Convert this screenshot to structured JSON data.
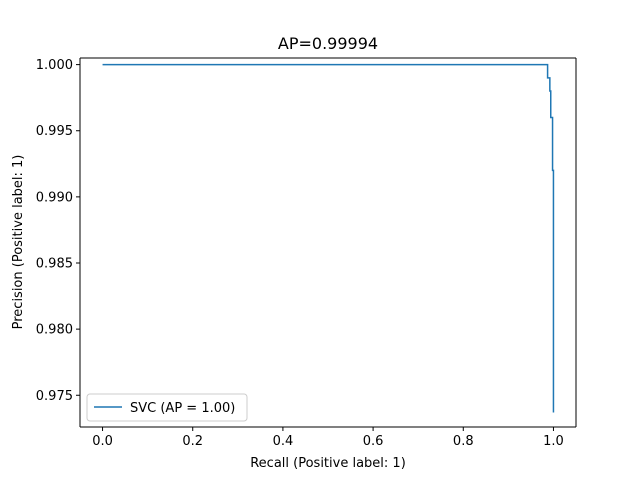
{
  "chart_data": {
    "type": "line",
    "title": "AP=0.99994",
    "xlabel": "Recall (Positive label: 1)",
    "ylabel": "Precision (Positive label: 1)",
    "xlim": [
      -0.05,
      1.05
    ],
    "ylim": [
      0.9726,
      1.0005
    ],
    "xticks": [
      0.0,
      0.2,
      0.4,
      0.6,
      0.8,
      1.0
    ],
    "xtick_labels": [
      "0.0",
      "0.2",
      "0.4",
      "0.6",
      "0.8",
      "1.0"
    ],
    "yticks": [
      0.975,
      0.98,
      0.985,
      0.99,
      0.995,
      1.0
    ],
    "ytick_labels": [
      "0.975",
      "0.980",
      "0.985",
      "0.990",
      "0.995",
      "1.000"
    ],
    "grid": false,
    "legend_position": "lower-left",
    "series": [
      {
        "name": "SVC (AP = 1.00)",
        "color": "#1f77b4",
        "drawstyle": "steps-post",
        "x": [
          0.0,
          0.987,
          0.987,
          0.992,
          0.992,
          0.994,
          0.994,
          0.998,
          0.998,
          1.0
        ],
        "y": [
          1.0,
          1.0,
          0.999,
          0.999,
          0.998,
          0.998,
          0.996,
          0.996,
          0.992,
          0.9737
        ]
      }
    ]
  }
}
